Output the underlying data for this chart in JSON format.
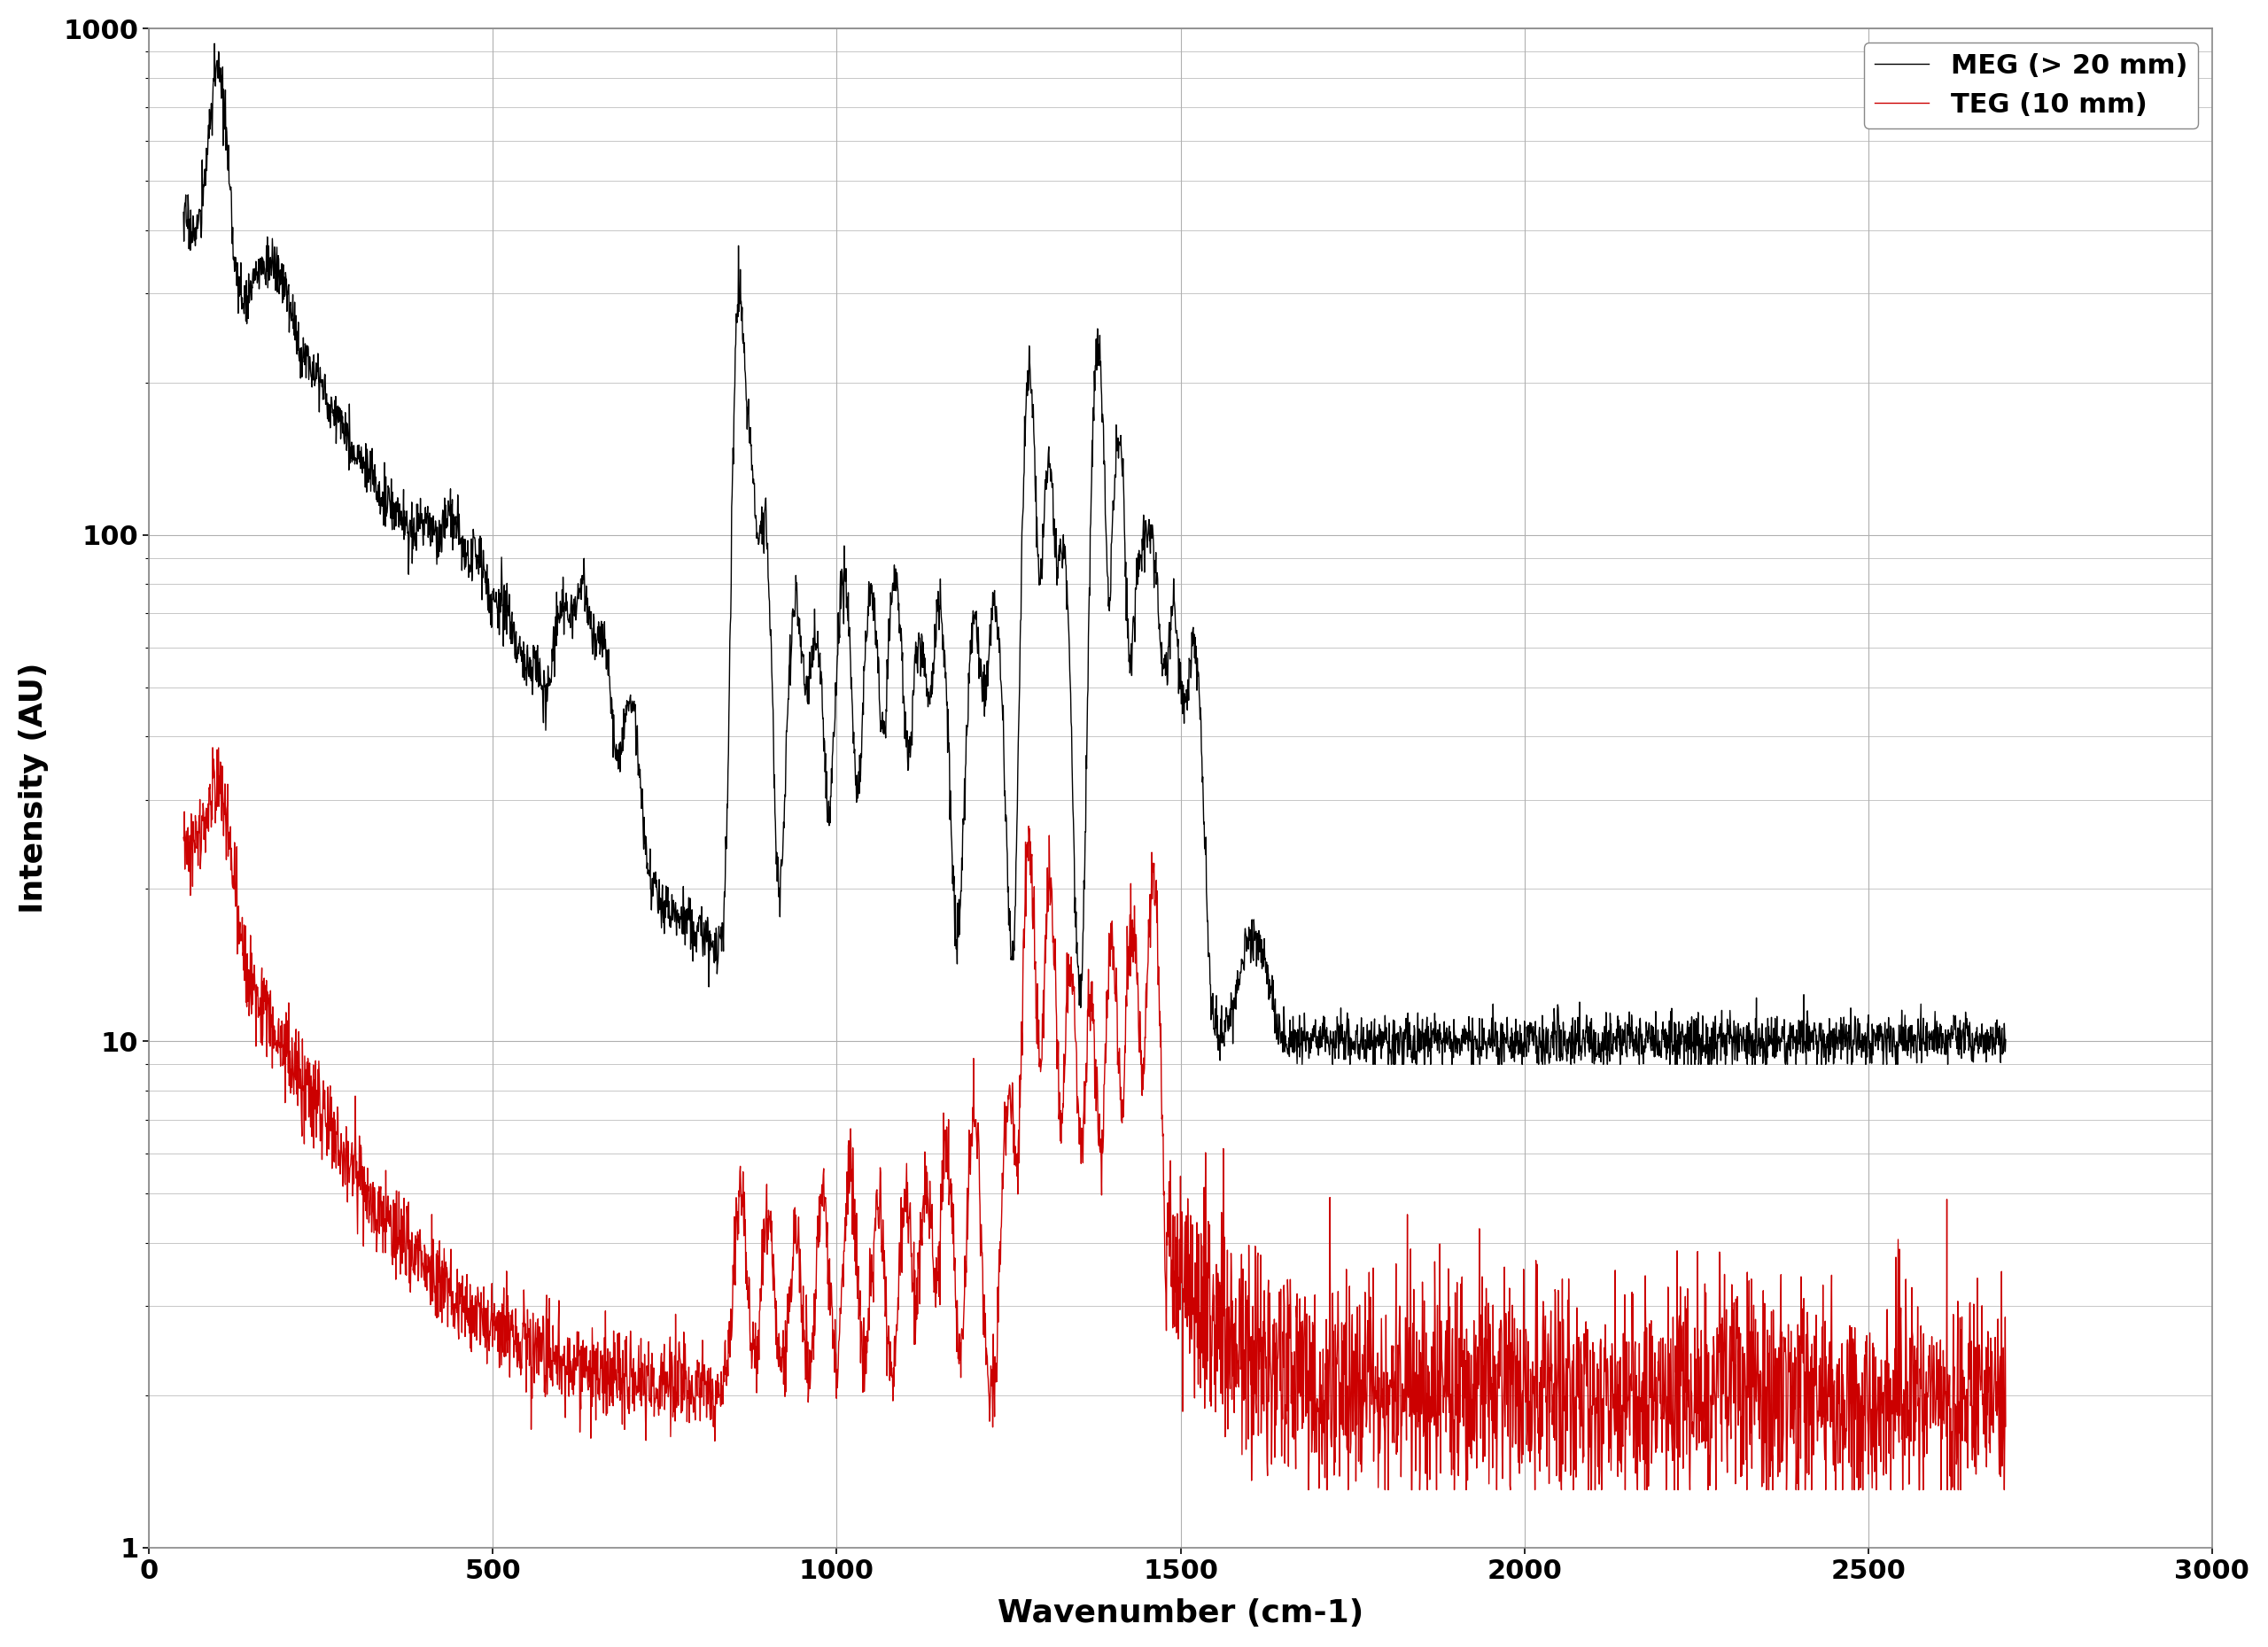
{
  "xlabel": "Wavenumber (cm-1)",
  "ylabel": "Intensity (AU)",
  "xlim": [
    0,
    3000
  ],
  "ylim_log": [
    1,
    1000
  ],
  "xticks": [
    0,
    500,
    1000,
    1500,
    2000,
    2500,
    3000
  ],
  "yticks": [
    1,
    10,
    100,
    1000
  ],
  "meg_color": "#000000",
  "teg_color": "#cc0000",
  "meg_label": "MEG (> 20 mm)",
  "teg_label": "TEG (10 mm)",
  "background_color": "#ffffff",
  "grid_color": "#b0b0b0",
  "legend_fontsize": 22,
  "axis_label_fontsize": 26,
  "tick_label_fontsize": 22,
  "line_width": 1.0
}
